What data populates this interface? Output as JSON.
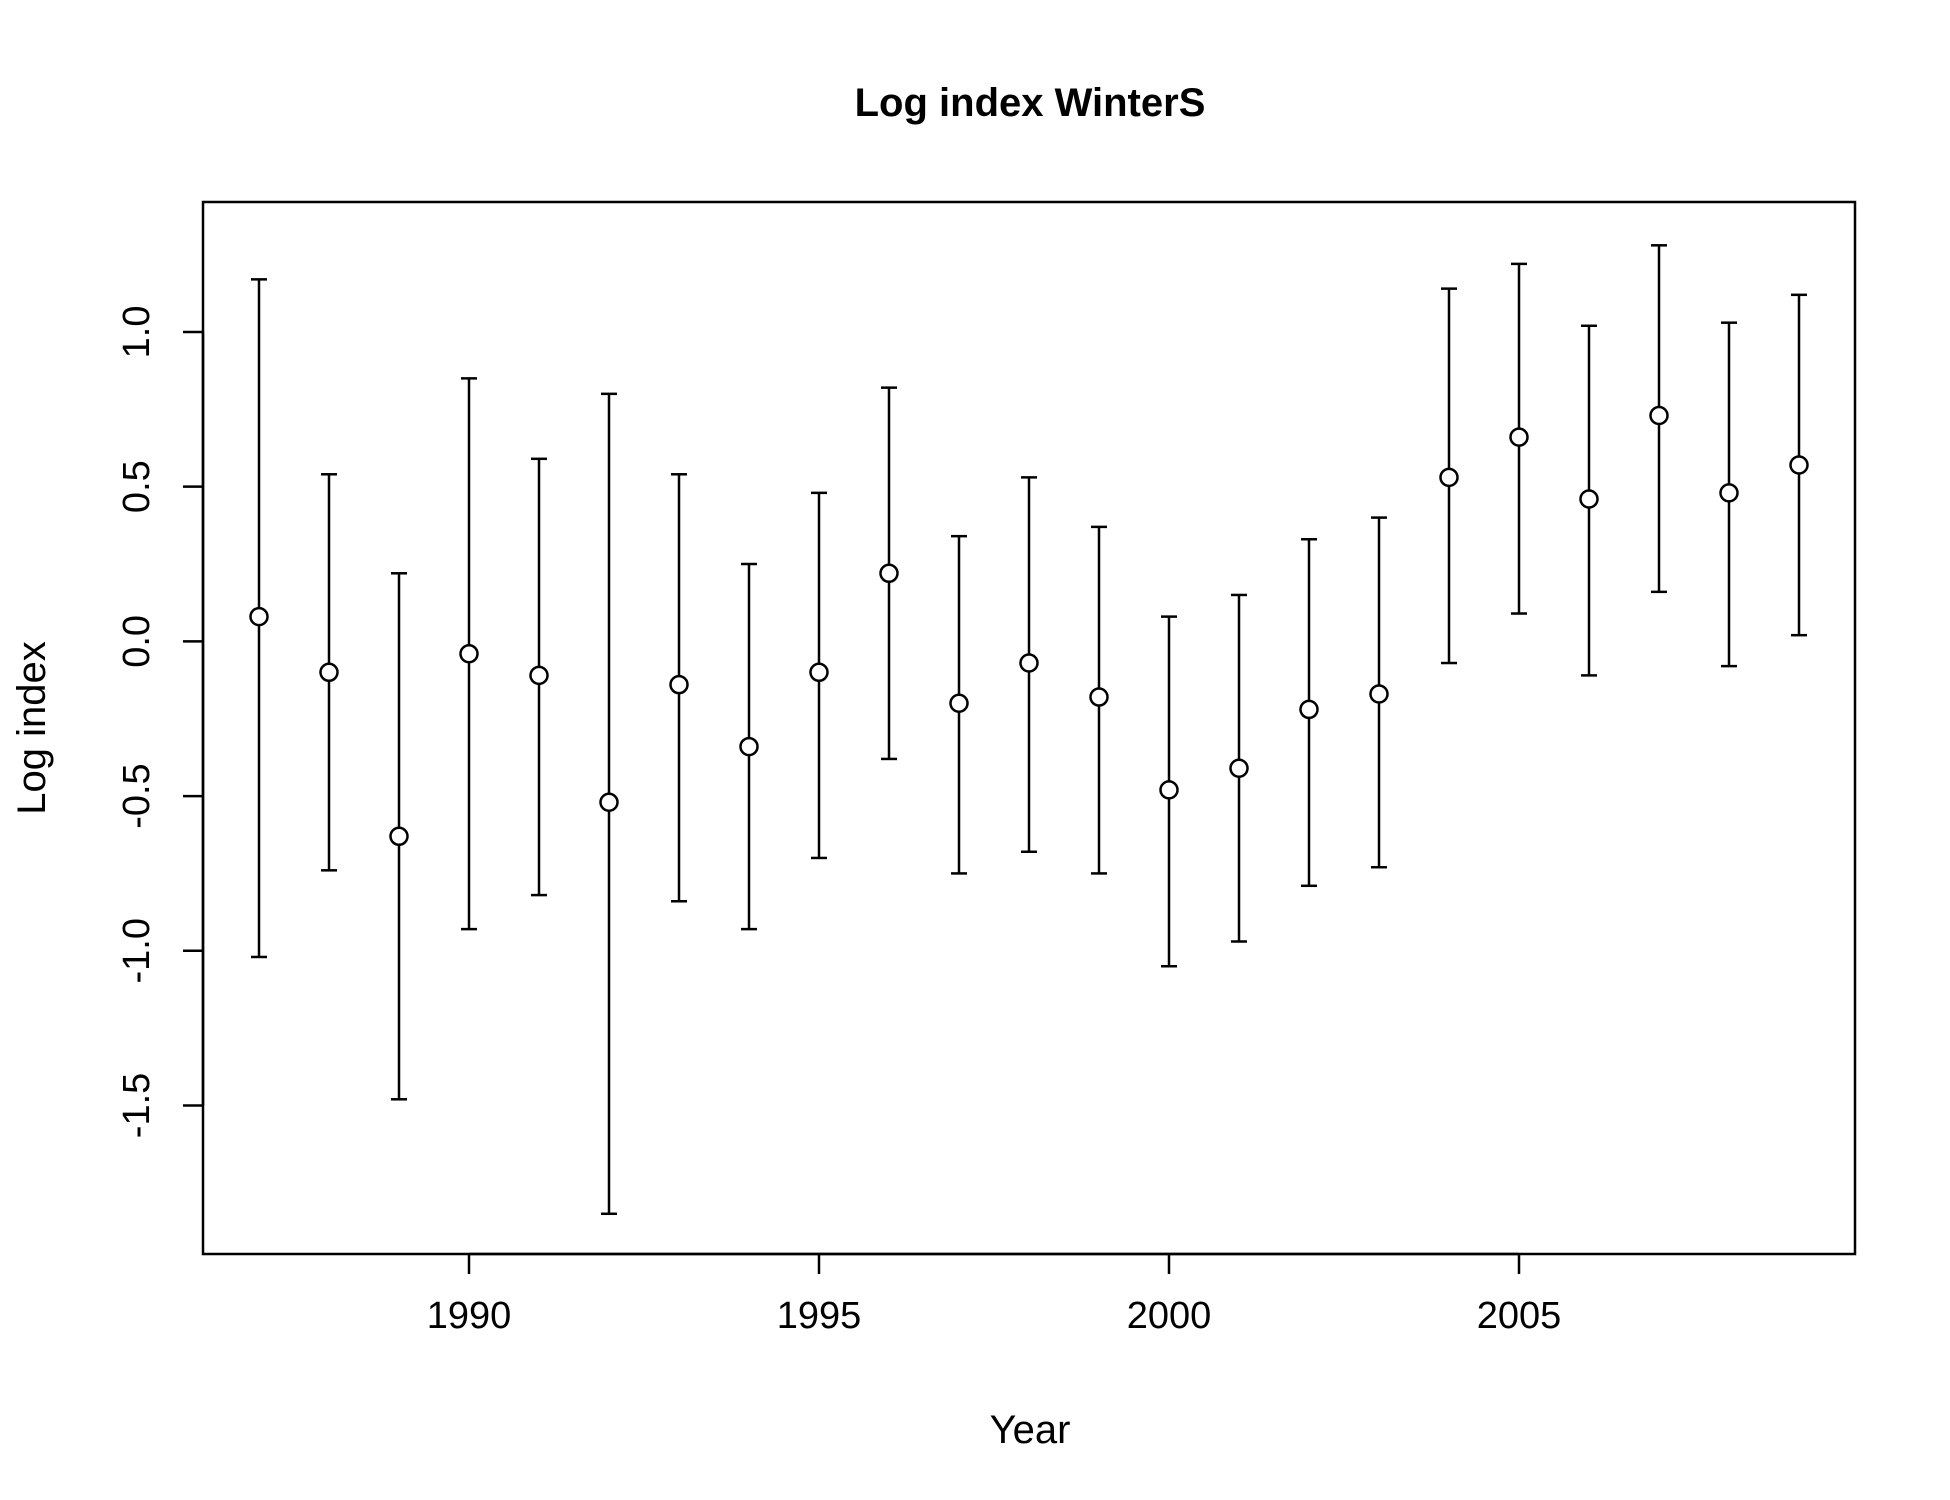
{
  "chart_data": {
    "type": "scatter",
    "title": "Log index WinterS",
    "xlabel": "Year",
    "ylabel": "Log index",
    "xlim": [
      1986.2,
      2009.8
    ],
    "ylim": [
      -1.98,
      1.42
    ],
    "grid": false,
    "legend": "none",
    "colors": {
      "line": "#000000",
      "point_fill": "#ffffff"
    },
    "x_ticks": [
      1990,
      1995,
      2000,
      2005
    ],
    "x_tick_labels": [
      "1990",
      "1995",
      "2000",
      "2005"
    ],
    "y_ticks": [
      -1.5,
      -1.0,
      -0.5,
      0.0,
      0.5,
      1.0
    ],
    "y_tick_labels": [
      "-1.5",
      "-1.0",
      "-0.5",
      "0.0",
      "0.5",
      "1.0"
    ],
    "series": [
      {
        "x": [
          1987,
          1988,
          1989,
          1990,
          1991,
          1992,
          1993,
          1994,
          1995,
          1996,
          1997,
          1998,
          1999,
          2000,
          2001,
          2002,
          2003,
          2004,
          2005,
          2006,
          2007,
          2008,
          2009
        ],
        "y": [
          0.08,
          -0.1,
          -0.63,
          -0.04,
          -0.11,
          -0.52,
          -0.14,
          -0.34,
          -0.1,
          0.22,
          -0.2,
          -0.07,
          -0.18,
          -0.48,
          -0.41,
          -0.22,
          -0.17,
          0.53,
          0.66,
          0.46,
          0.73,
          0.48,
          0.57
        ],
        "lower": [
          -1.02,
          -0.74,
          -1.48,
          -0.93,
          -0.82,
          -1.85,
          -0.84,
          -0.93,
          -0.7,
          -0.38,
          -0.75,
          -0.68,
          -0.75,
          -1.05,
          -0.97,
          -0.79,
          -0.73,
          -0.07,
          0.09,
          -0.11,
          0.16,
          -0.08,
          0.02
        ],
        "upper": [
          1.17,
          0.54,
          0.22,
          0.85,
          0.59,
          0.8,
          0.54,
          0.25,
          0.48,
          0.82,
          0.34,
          0.53,
          0.37,
          0.08,
          0.15,
          0.33,
          0.4,
          1.14,
          1.22,
          1.02,
          1.28,
          1.03,
          1.12
        ]
      }
    ]
  }
}
